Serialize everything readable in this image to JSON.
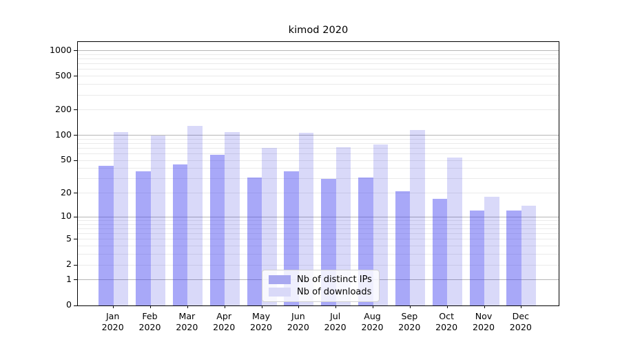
{
  "title": "kimod 2020",
  "legend": {
    "items": [
      {
        "label": "Nb of distinct IPs",
        "color": "#a8a8f0"
      },
      {
        "label": "Nb of downloads",
        "color": "#d9d9f8"
      }
    ]
  },
  "chart_data": {
    "type": "bar",
    "title": "kimod 2020",
    "categories": [
      "Jan 2020",
      "Feb 2020",
      "Mar 2020",
      "Apr 2020",
      "May 2020",
      "Jun 2020",
      "Jul 2020",
      "Aug 2020",
      "Sep 2020",
      "Oct 2020",
      "Nov 2020",
      "Dec 2020"
    ],
    "series": [
      {
        "name": "Nb of distinct IPs",
        "color_rgba": "rgba(62,62,239,0.45)",
        "values": [
          43,
          37,
          45,
          58,
          31,
          37,
          30,
          31,
          21,
          17,
          12,
          12
        ]
      },
      {
        "name": "Nb of downloads",
        "color_rgba": "rgba(2,2,215,0.15)",
        "values": [
          108,
          100,
          128,
          108,
          70,
          107,
          72,
          78,
          115,
          54,
          18,
          14
        ]
      }
    ],
    "yscale": "log10(1+v)",
    "ylim": [
      0,
      1200
    ],
    "yticks": [
      0,
      1,
      2,
      5,
      10,
      20,
      50,
      100,
      200,
      500,
      1000
    ],
    "grid": "horizontal: major gridlines at 1,10,100,1000; minor at 2-9 per decade",
    "legend_position": "inside, lower center"
  }
}
